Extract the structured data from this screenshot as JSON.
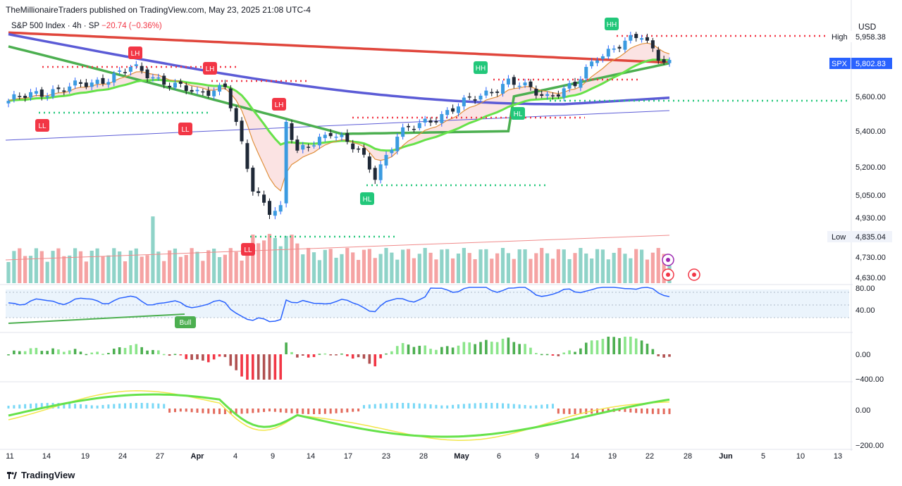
{
  "header": {
    "publisher_line": "TheMillionaireTraders published on TradingView.com, May 23, 2025 21:08 UTC-4"
  },
  "legend": {
    "symbol": "S&P 500 Index · 4h · SP",
    "change": "−20.74 (−0.36%)"
  },
  "currency": "USD",
  "price_labels": {
    "high_label": "High",
    "high_value": "5,958.38",
    "spx_label": "SPX",
    "spx_value": "5,802.83",
    "low_label": "Low",
    "low_value": "4,835.04"
  },
  "swing_labels": [
    "LL",
    "LH",
    "LL",
    "LH",
    "LH",
    "LL",
    "HL",
    "HH",
    "HL",
    "HH"
  ],
  "rsi_label": "Bull",
  "footer": {
    "brand": "TradingView"
  },
  "colors": {
    "up": "#089981",
    "down": "#f23645",
    "ma_blue": "#5b5bd6",
    "ma_red": "#e0463c",
    "ma_green": "#4caf50",
    "ma_lime": "#66e24a",
    "rsi_line": "#2962ff"
  },
  "chart_data": {
    "type": "line",
    "symbol": "SPX",
    "timeframe": "4h",
    "x_tick_labels": [
      "11",
      "14",
      "19",
      "24",
      "27",
      "Apr",
      "4",
      "9",
      "14",
      "17",
      "23",
      "28",
      "May",
      "6",
      "9",
      "14",
      "19",
      "22",
      "28",
      "Jun",
      "5",
      "10",
      "13"
    ],
    "main_y_ticks": [
      "5,600.00",
      "5,400.00",
      "5,200.00",
      "5,050.00",
      "4,930.00",
      "4,835.04",
      "4,730.00",
      "4,630.00"
    ],
    "price_high": 5958.38,
    "price_last": 5802.83,
    "price_low": 4835.04,
    "close_path": [
      {
        "date": "Mar 11",
        "close": 5575
      },
      {
        "date": "Mar 14",
        "close": 5638
      },
      {
        "date": "Mar 19",
        "close": 5675
      },
      {
        "date": "Mar 24",
        "close": 5768
      },
      {
        "date": "Mar 27",
        "close": 5693
      },
      {
        "date": "Mar 31",
        "close": 5611
      },
      {
        "date": "Apr 2",
        "close": 5670
      },
      {
        "date": "Apr 4",
        "close": 5074
      },
      {
        "date": "Apr 7",
        "close": 4980
      },
      {
        "date": "Apr 8",
        "close": 4982
      },
      {
        "date": "Apr 9",
        "close": 5456
      },
      {
        "date": "Apr 10",
        "close": 5268
      },
      {
        "date": "Apr 14",
        "close": 5405
      },
      {
        "date": "Apr 17",
        "close": 5282
      },
      {
        "date": "Apr 21",
        "close": 5158
      },
      {
        "date": "Apr 23",
        "close": 5375
      },
      {
        "date": "Apr 28",
        "close": 5528
      },
      {
        "date": "May 2",
        "close": 5686
      },
      {
        "date": "May 6",
        "close": 5606
      },
      {
        "date": "May 9",
        "close": 5660
      },
      {
        "date": "May 12",
        "close": 5844
      },
      {
        "date": "May 14",
        "close": 5892
      },
      {
        "date": "May 19",
        "close": 5963
      },
      {
        "date": "May 21",
        "close": 5844
      },
      {
        "date": "May 23",
        "close": 5802
      }
    ],
    "rsi": {
      "y_ticks": [
        "80.00",
        "40.00"
      ]
    },
    "histogram": {
      "y_ticks": [
        "0.00",
        "−400.00"
      ]
    },
    "oscillator": {
      "y_ticks": [
        "0.00",
        "−200.00"
      ]
    }
  }
}
